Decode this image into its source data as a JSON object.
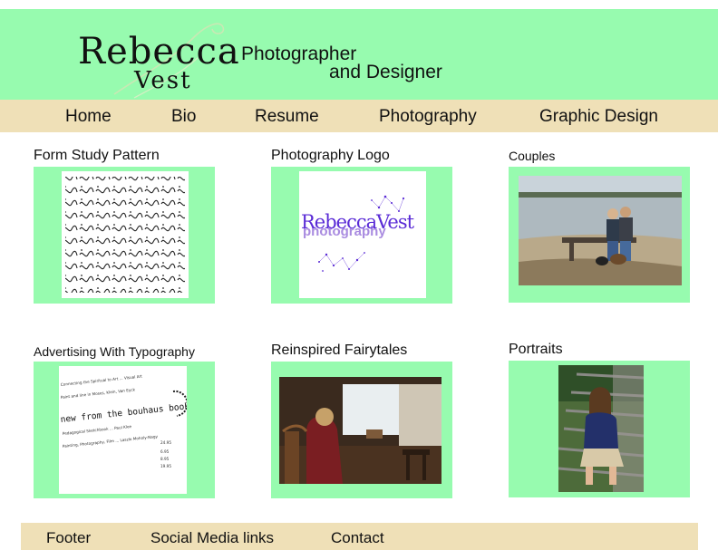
{
  "header": {
    "logo_first": "Rebecca",
    "logo_last": "Vest",
    "tagline_line1": "Photographer",
    "tagline_line2": "and Designer"
  },
  "nav": {
    "items": [
      "Home",
      "Bio",
      "Resume",
      "Photography",
      "Graphic Design"
    ]
  },
  "gallery": {
    "items": [
      {
        "title": "Form Study Pattern",
        "image": "form-study-pattern-image"
      },
      {
        "title": "Photography Logo",
        "image": "photography-logo-image",
        "logo_text": "RebeccaVest",
        "logo_sub": "photography"
      },
      {
        "title": "Couples",
        "image": "couples-photo"
      },
      {
        "title": "Advertising With Typography",
        "image": "typography-ad-image",
        "headline": "new from the bouhaus books"
      },
      {
        "title": "Reinspired Fairytales",
        "image": "fairytale-photo"
      },
      {
        "title": "Portraits",
        "image": "portrait-photo"
      }
    ]
  },
  "footer": {
    "items": [
      "Footer",
      "Social Media links",
      "Contact"
    ]
  },
  "colors": {
    "header_green": "#97fbaf",
    "nav_tan": "#efe0b7",
    "logo_purple": "#5a2bd6",
    "logo_lavender": "#a98be0"
  }
}
